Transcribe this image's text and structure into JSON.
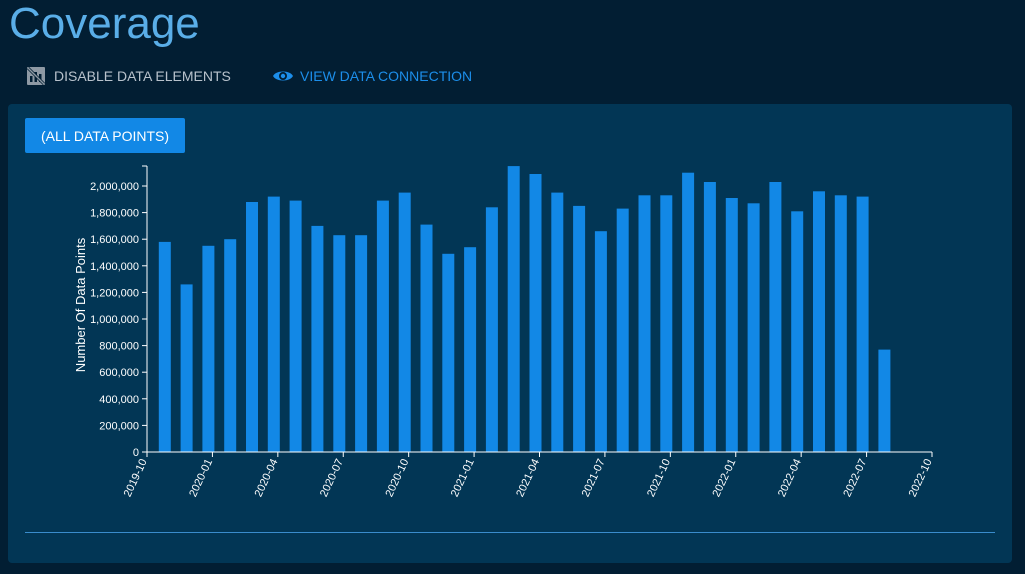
{
  "page": {
    "title": "Coverage"
  },
  "toolbar": {
    "disable_label": "DISABLE DATA ELEMENTS",
    "disable_icon": "chart-off-icon",
    "view_label": "VIEW DATA CONNECTION",
    "view_icon": "eye-icon"
  },
  "filter": {
    "label": "(ALL DATA POINTS)"
  },
  "colors": {
    "background": "#021e33",
    "card": "#023655",
    "bar": "#1288e6",
    "title": "#5aaee8",
    "link": "#1c8eea"
  },
  "chart_data": {
    "type": "bar",
    "ylabel": "Number Of Data Points",
    "xlabel": "",
    "ylim": [
      0,
      2150000
    ],
    "yticks": [
      0,
      200000,
      400000,
      600000,
      800000,
      1000000,
      1200000,
      1400000,
      1600000,
      1800000,
      2000000
    ],
    "ytick_labels": [
      "0",
      "200,000",
      "400,000",
      "600,000",
      "800,000",
      "1,000,000",
      "1,200,000",
      "1,400,000",
      "1,600,000",
      "1,800,000",
      "2,000,000"
    ],
    "xlim": [
      "2019-10",
      "2022-10"
    ],
    "xticks": [
      "2019-10",
      "2020-01",
      "2020-04",
      "2020-07",
      "2020-10",
      "2021-01",
      "2021-04",
      "2021-07",
      "2021-10",
      "2022-01",
      "2022-04",
      "2022-07",
      "2022-10"
    ],
    "categories": [
      "2019-11",
      "2019-12",
      "2020-01",
      "2020-02",
      "2020-03",
      "2020-04",
      "2020-05",
      "2020-06",
      "2020-07",
      "2020-08",
      "2020-09",
      "2020-10",
      "2020-11",
      "2020-12",
      "2021-01",
      "2021-02",
      "2021-03",
      "2021-04",
      "2021-05",
      "2021-06",
      "2021-07",
      "2021-08",
      "2021-09",
      "2021-10",
      "2021-11",
      "2021-12",
      "2022-01",
      "2022-02",
      "2022-03",
      "2022-04",
      "2022-05",
      "2022-06",
      "2022-07",
      "2022-08"
    ],
    "values": [
      1580000,
      1260000,
      1550000,
      1600000,
      1880000,
      1920000,
      1890000,
      1700000,
      1630000,
      1630000,
      1890000,
      1950000,
      1710000,
      1490000,
      1540000,
      1840000,
      2150000,
      2090000,
      1950000,
      1850000,
      1660000,
      1830000,
      1930000,
      1930000,
      2100000,
      2030000,
      1910000,
      1870000,
      2030000,
      1810000,
      1960000,
      1930000,
      1920000,
      770000
    ],
    "grid": false,
    "legend": "none"
  }
}
